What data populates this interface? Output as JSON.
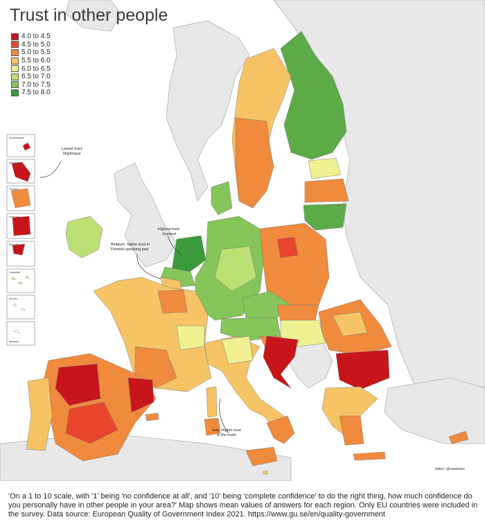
{
  "title": "Trust in other people",
  "legend": [
    {
      "label": "4.0 to 4.5",
      "color": "#c8141b"
    },
    {
      "label": "4.5 to 5.0",
      "color": "#e9452a"
    },
    {
      "label": "5.0 to 5.5",
      "color": "#f08a3c"
    },
    {
      "label": "5.5 to 6.0",
      "color": "#f6c465"
    },
    {
      "label": "6.0 to 6.5",
      "color": "#eef092"
    },
    {
      "label": "6.5 to 7.0",
      "color": "#bde074"
    },
    {
      "label": "7.0 to 7.5",
      "color": "#86c55a"
    },
    {
      "label": "7.5 to 8.0",
      "color": "#3a9a3c"
    }
  ],
  "insets": [
    "Guadeloupe",
    "Martinique",
    "Guyane",
    "Réunion",
    "Mayotte",
    "Canarias",
    "Açores",
    "Madeira"
  ],
  "annotations": {
    "lowest": "Lowest trust:\nMartinique",
    "highest": "Highest trust:\nZeeland",
    "belgium": "Belgium: higher trust in\nFlemish-speaking part",
    "italy": "Italy: Higher trust\nin the north"
  },
  "credit": "twitter: @sundsliviz",
  "caption": "'On a 1 to 10 scale, with '1' being 'no confidence at all', and '10' being 'complete confidence' to do the right thing, how much confidence do you personally have in other people in your area?' Map shows mean values of answers for each region. Only EU countries were included in the survey. Data source: European Quality of Government Index 2021. https://www.gu.se/en/quality-government",
  "colors": {
    "sea": "#ffffff",
    "non_eu_land": "#e8e8e8",
    "border": "#8a8a8a"
  }
}
